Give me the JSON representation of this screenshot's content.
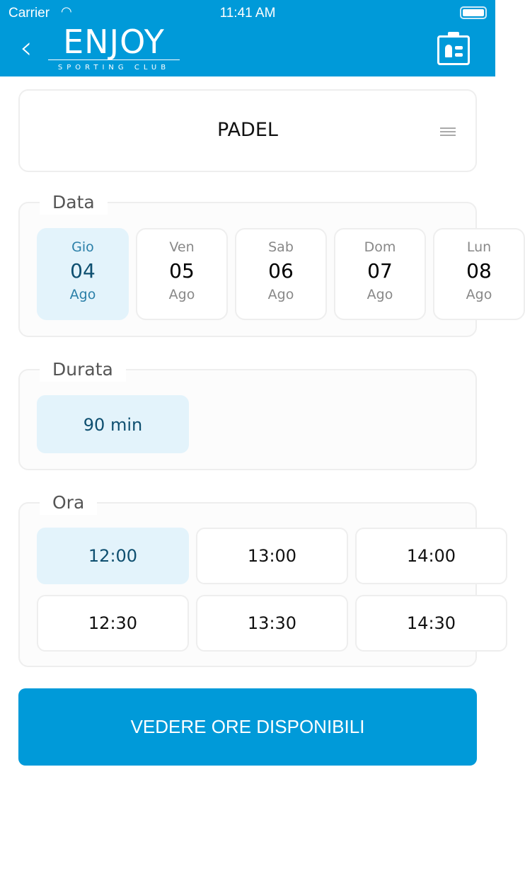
{
  "status_bar": {
    "carrier": "Carrier",
    "time": "11:41 AM"
  },
  "header": {
    "logo_main": "ENJOY",
    "logo_sub": "SPORTING CLUB",
    "back_icon": "chevron-left-icon",
    "right_icon": "id-badge-icon"
  },
  "sport": {
    "title": "PADEL",
    "menu_icon": "menu-lines-icon"
  },
  "date_section": {
    "label": "Data",
    "items": [
      {
        "day": "Gio",
        "num": "04",
        "month": "Ago",
        "selected": true
      },
      {
        "day": "Ven",
        "num": "05",
        "month": "Ago",
        "selected": false
      },
      {
        "day": "Sab",
        "num": "06",
        "month": "Ago",
        "selected": false
      },
      {
        "day": "Dom",
        "num": "07",
        "month": "Ago",
        "selected": false
      },
      {
        "day": "Lun",
        "num": "08",
        "month": "Ago",
        "selected": false
      }
    ]
  },
  "duration_section": {
    "label": "Durata",
    "items": [
      {
        "label": "90 min",
        "selected": true
      }
    ]
  },
  "time_section": {
    "label": "Ora",
    "items": [
      "12:00",
      "13:00",
      "14:00",
      "12:30",
      "13:30",
      "14:30"
    ],
    "selected": "12:00"
  },
  "cta": {
    "label": "VEDERE ORE DISPONIBILI"
  },
  "colors": {
    "primary": "#009ad9",
    "selected_bg": "#e3f3fb",
    "selected_text": "#0e4f70"
  }
}
